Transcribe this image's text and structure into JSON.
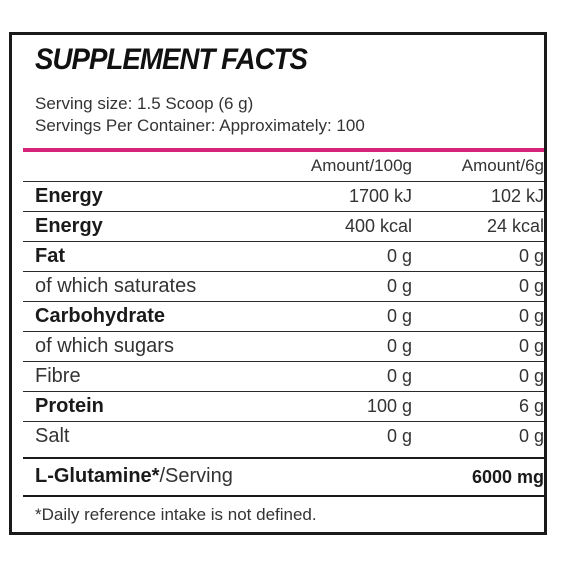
{
  "title": "SUPPLEMENT FACTS",
  "serving_size": "Serving size: 1.5 Scoop (6 g)",
  "servings_per_container": "Servings Per Container: Approximately: 100",
  "columns": [
    "Amount/100g",
    "Amount/6g"
  ],
  "rows": [
    {
      "label": "Energy",
      "bold": true,
      "per100": "1700 kJ",
      "perServing": "102 kJ"
    },
    {
      "label": "Energy",
      "bold": true,
      "per100": "400 kcal",
      "perServing": "24 kcal"
    },
    {
      "label": "Fat",
      "bold": true,
      "per100": "0 g",
      "perServing": "0 g"
    },
    {
      "label": "of which saturates",
      "bold": false,
      "per100": "0 g",
      "perServing": "0 g"
    },
    {
      "label": "Carbohydrate",
      "bold": true,
      "per100": "0 g",
      "perServing": "0 g"
    },
    {
      "label": "of which sugars",
      "bold": false,
      "per100": "0 g",
      "perServing": "0 g"
    },
    {
      "label": "Fibre",
      "bold": false,
      "per100": "0 g",
      "perServing": "0 g"
    },
    {
      "label": "Protein",
      "bold": true,
      "per100": "100 g",
      "perServing": "6 g"
    },
    {
      "label": "Salt",
      "bold": false,
      "per100": "0 g",
      "perServing": "0 g"
    }
  ],
  "glutamine": {
    "label_bold": "L-Glutamine*",
    "label_rest": "/Serving",
    "value": "6000 mg"
  },
  "footnote": "*Daily reference intake is not defined.",
  "colors": {
    "accent_rule": "#d6247a",
    "border": "#1a1a1a"
  }
}
